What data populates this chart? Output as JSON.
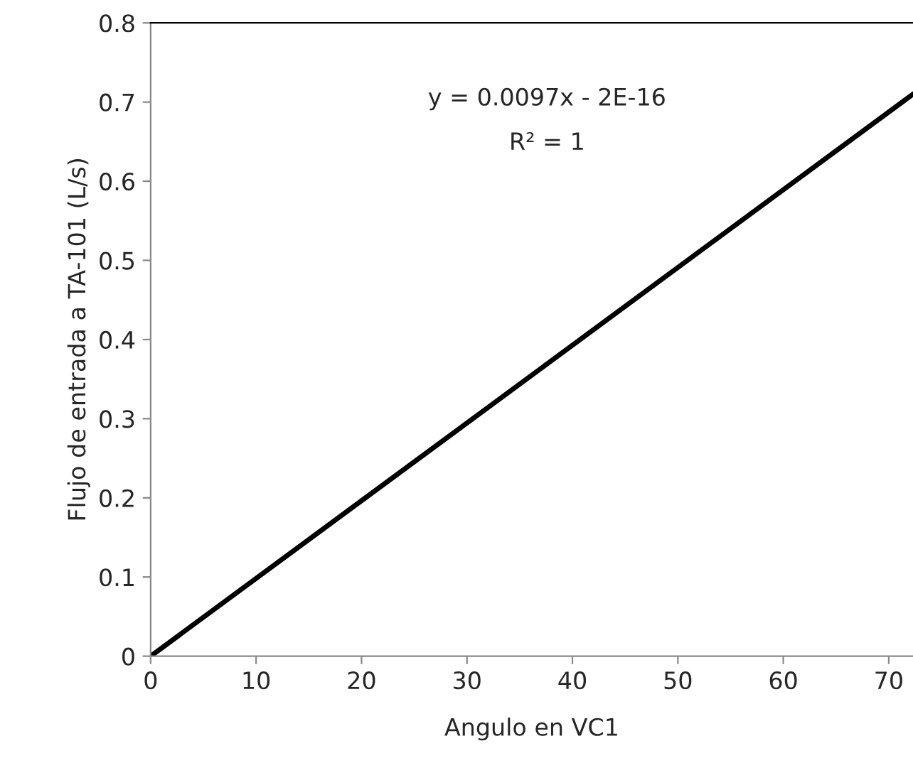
{
  "chart_data": {
    "type": "line",
    "xlabel": "Angulo en VC1",
    "ylabel": "Flujo de entrada a TA-101 (L/s)",
    "series": [
      {
        "color": "#000000",
        "x": [
          0,
          72.3
        ],
        "values": [
          0,
          0.71
        ]
      }
    ],
    "annotations": [
      "y = 0.0097x - 2E-16",
      "R² = 1"
    ],
    "xlim": [
      0,
      72.3
    ],
    "xticks": [
      0,
      10,
      20,
      30,
      40,
      50,
      60,
      70
    ],
    "ylim": [
      0,
      0.8
    ],
    "yticks": [
      0,
      0.1,
      0.2,
      0.3,
      0.4,
      0.5,
      0.6,
      0.7,
      0.8
    ],
    "grid": false,
    "legend": false,
    "marker": "none",
    "line_style": "solid"
  }
}
